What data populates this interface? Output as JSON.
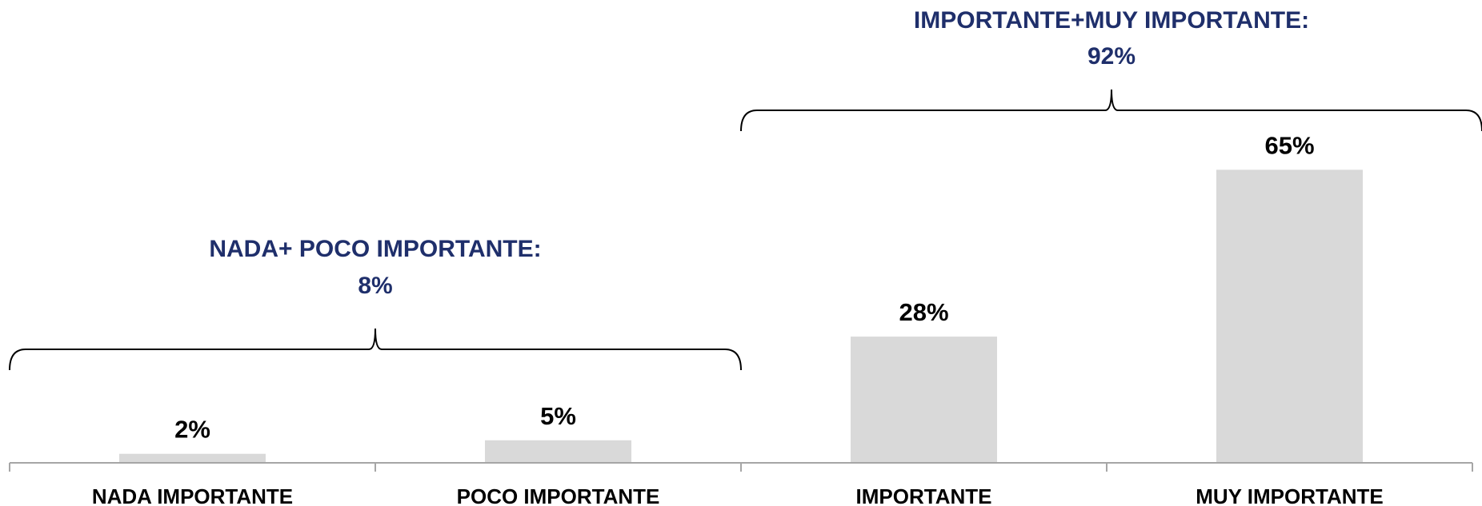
{
  "chart_data": {
    "type": "bar",
    "categories": [
      "NADA IMPORTANTE",
      "POCO IMPORTANTE",
      "IMPORTANTE",
      "MUY IMPORTANTE"
    ],
    "values": [
      2,
      5,
      28,
      65
    ],
    "value_labels": [
      "2%",
      "5%",
      "28%",
      "65%"
    ],
    "title": "",
    "xlabel": "",
    "ylabel": "",
    "ylim": [
      0,
      70
    ],
    "grid": false,
    "legend": "none",
    "groups": [
      {
        "label_line1": "NADA+ POCO IMPORTANTE:",
        "label_line2": "8%",
        "categories": [
          "NADA IMPORTANTE",
          "POCO IMPORTANTE"
        ],
        "value": 8
      },
      {
        "label_line1": "IMPORTANTE+MUY IMPORTANTE:",
        "label_line2": "92%",
        "categories": [
          "IMPORTANTE",
          "MUY IMPORTANTE"
        ],
        "value": 92
      }
    ]
  },
  "colors": {
    "bar": "#d9d9d9",
    "axis": "#a6a6a6",
    "brace": "#000000",
    "group_label": "#1f2f6b",
    "text": "#000000"
  }
}
